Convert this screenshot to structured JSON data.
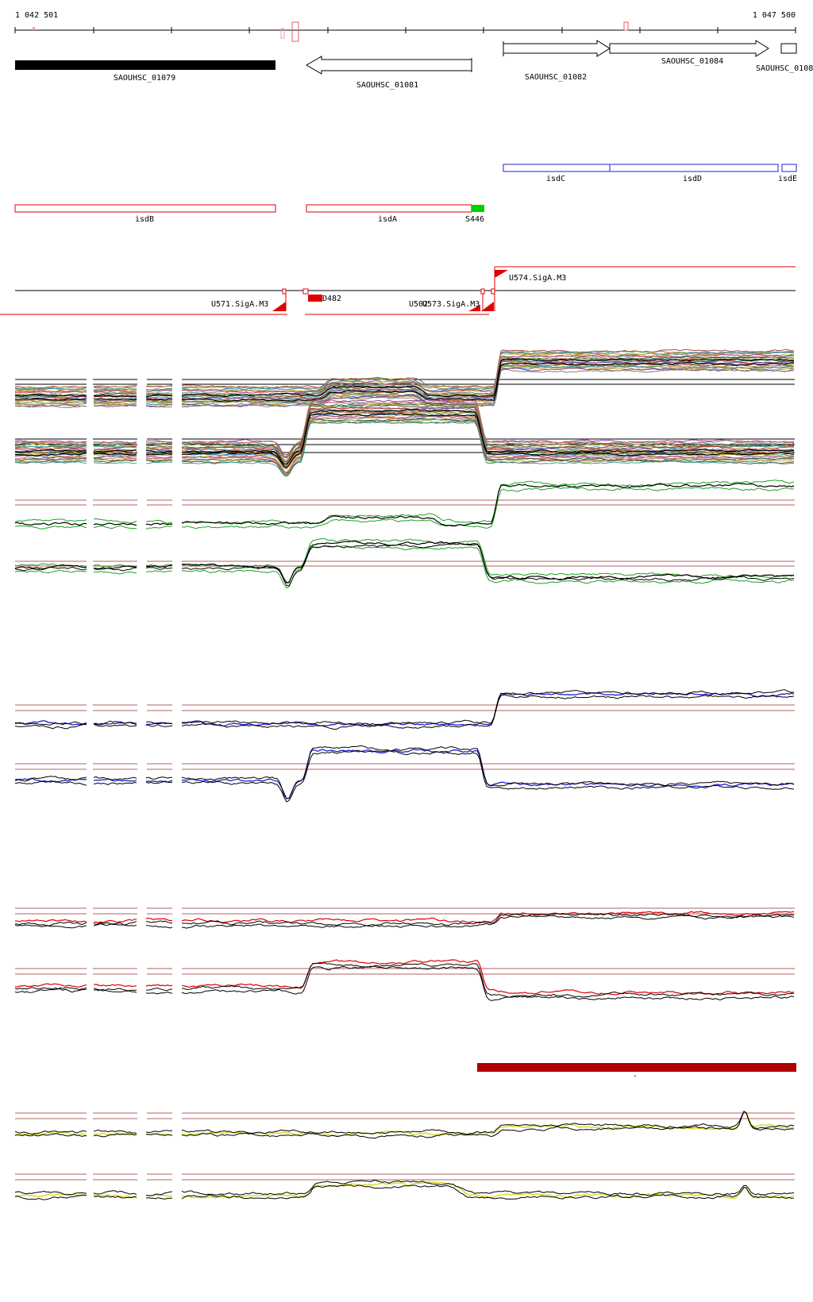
{
  "coords": {
    "start": "1 042 501",
    "end": "1 047 500"
  },
  "colors": {
    "red": "#e00000",
    "blue": "#2020d0",
    "green": "#20a020",
    "darkred": "#b00000",
    "yellow": "#d8d820",
    "black": "#000000",
    "feature_green": "#00d000"
  },
  "genes": [
    {
      "label": "SAOUHSC_01079"
    },
    {
      "label": "SAOUHSC_01081"
    },
    {
      "label": "SAOUHSC_01082"
    },
    {
      "label": "SAOUHSC_01084"
    },
    {
      "label": "SAOUHSC_0108"
    }
  ],
  "operon_blue": [
    {
      "label": "isdC"
    },
    {
      "label": "isdD"
    },
    {
      "label": "isdE"
    }
  ],
  "operon_red": [
    {
      "label": "isdB"
    },
    {
      "label": "isdA"
    },
    {
      "label": "S446"
    }
  ],
  "promoters": [
    {
      "label": "U574.SigA.M3"
    },
    {
      "label": "U571.SigA.M3"
    },
    {
      "label": "D482"
    },
    {
      "label": "U502"
    },
    {
      "label": "U573.SigA.M3"
    }
  ],
  "dark_region": {
    "label": "-"
  }
}
